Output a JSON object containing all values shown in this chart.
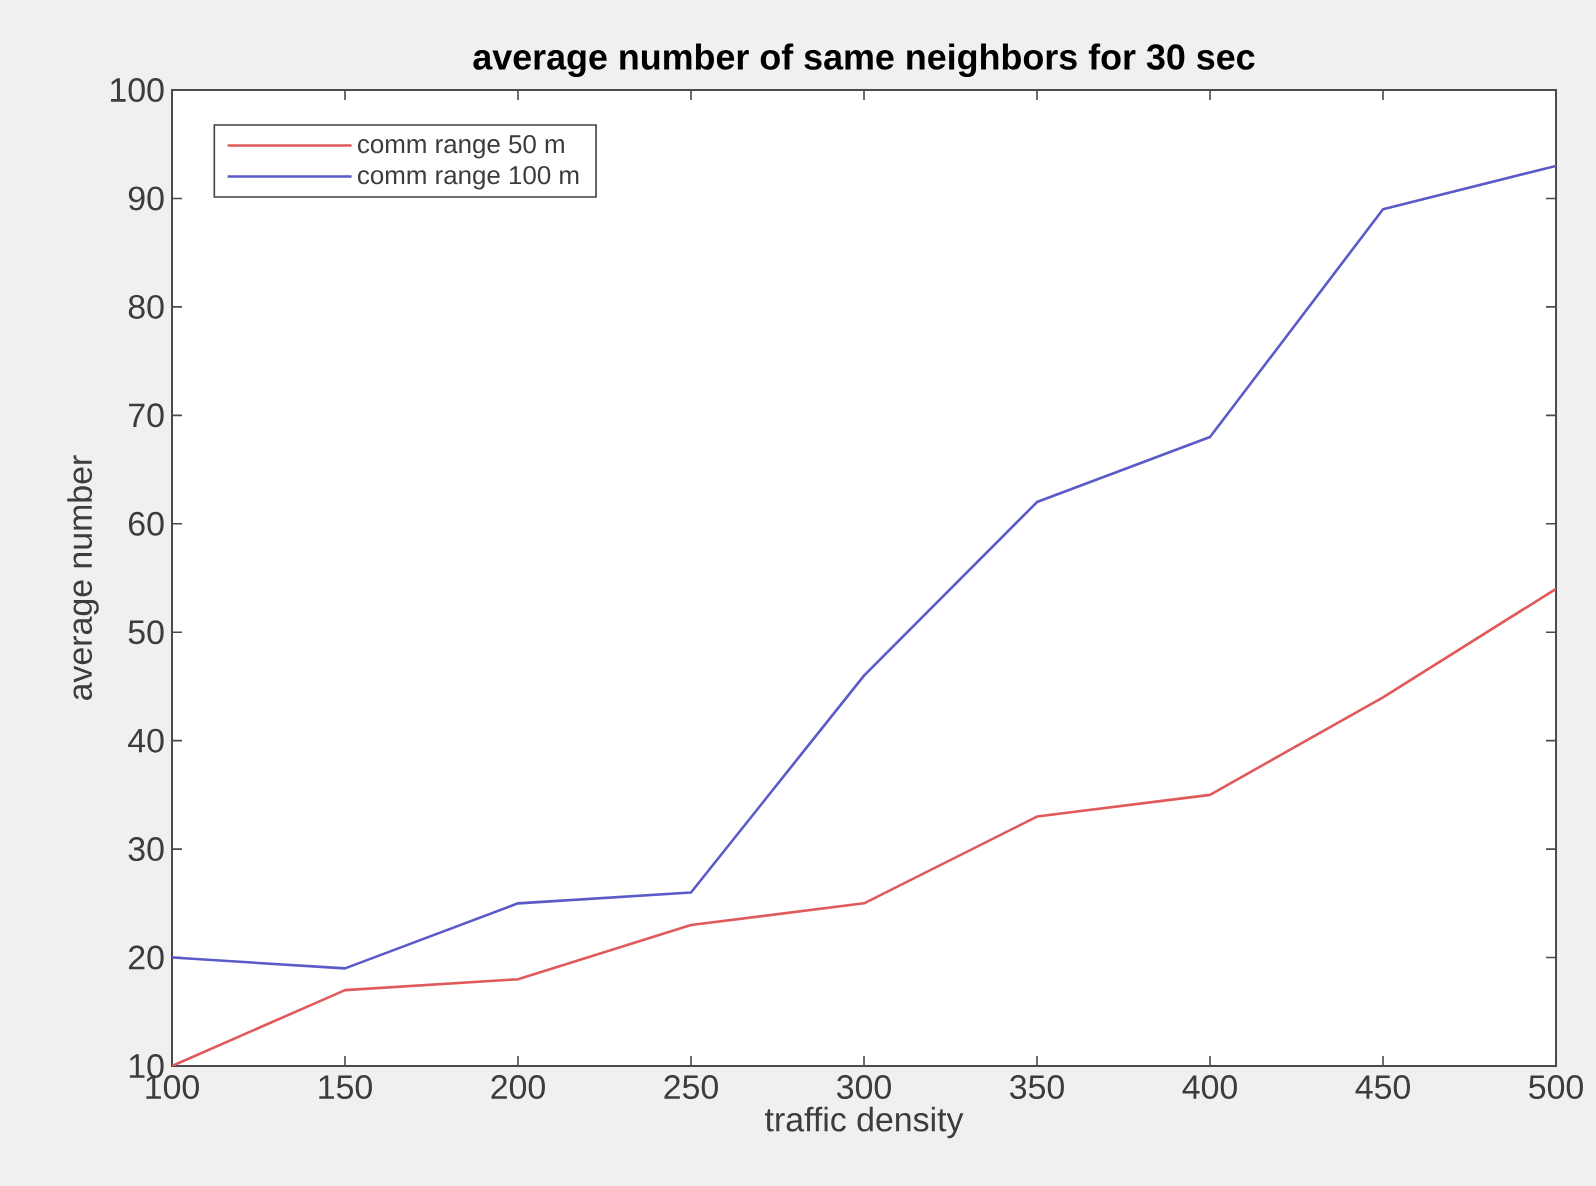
{
  "chart_data": {
    "type": "line",
    "title": "average number of same neighbors for 30 sec",
    "xlabel": "traffic density",
    "ylabel": "average number",
    "x": [
      100,
      150,
      200,
      250,
      300,
      350,
      400,
      450,
      500
    ],
    "series": [
      {
        "name": "comm range 50 m",
        "color": "#e05a5a",
        "values": [
          10,
          17,
          18,
          23,
          25,
          33,
          35,
          44,
          54
        ]
      },
      {
        "name": "comm range 100 m",
        "color": "#5a5ac8",
        "values": [
          20,
          19,
          25,
          26,
          46,
          62,
          68,
          89,
          93
        ]
      }
    ],
    "xlim": [
      100,
      500
    ],
    "ylim": [
      10,
      100
    ],
    "xticks": [
      100,
      150,
      200,
      250,
      300,
      350,
      400,
      450,
      500
    ],
    "yticks": [
      10,
      20,
      30,
      40,
      50,
      60,
      70,
      80,
      90,
      100
    ],
    "legend": "top left"
  }
}
